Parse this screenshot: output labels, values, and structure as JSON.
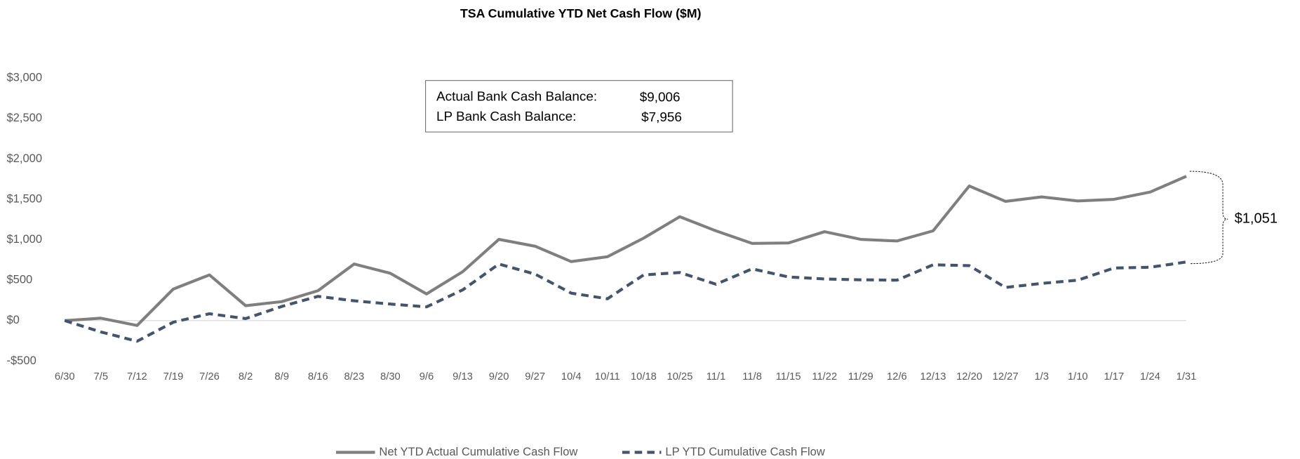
{
  "chart_data": {
    "type": "line",
    "title": "TSA Cumulative YTD Net Cash Flow ($M)",
    "categories": [
      "6/30",
      "7/5",
      "7/12",
      "7/19",
      "7/26",
      "8/2",
      "8/9",
      "8/16",
      "8/23",
      "8/30",
      "9/6",
      "9/13",
      "9/20",
      "9/27",
      "10/4",
      "10/11",
      "10/18",
      "10/25",
      "11/1",
      "11/8",
      "11/15",
      "11/22",
      "11/29",
      "12/6",
      "12/13",
      "12/20",
      "12/27",
      "1/3",
      "1/10",
      "1/17",
      "1/24",
      "1/31"
    ],
    "series": [
      {
        "name": "Net YTD Actual Cumulative Cash Flow",
        "color": "#7f7f7f",
        "line_style": "solid",
        "values": [
          0,
          30,
          -60,
          390,
          565,
          185,
          235,
          370,
          700,
          585,
          330,
          605,
          1005,
          920,
          730,
          790,
          1020,
          1285,
          1110,
          955,
          960,
          1100,
          1005,
          985,
          1110,
          1665,
          1475,
          1530,
          1480,
          1500,
          1590,
          1785
        ]
      },
      {
        "name": "LP YTD Cumulative Cash Flow",
        "color": "#44546a",
        "line_style": "dashed",
        "values": [
          0,
          -140,
          -255,
          -20,
          85,
          25,
          175,
          300,
          245,
          205,
          170,
          380,
          700,
          575,
          340,
          270,
          565,
          595,
          450,
          640,
          540,
          515,
          505,
          500,
          690,
          680,
          410,
          460,
          500,
          650,
          660,
          725
        ]
      }
    ],
    "ylim": [
      -500,
      3000
    ],
    "yticks": [
      {
        "value": -500,
        "label": "-$500"
      },
      {
        "value": 0,
        "label": "$0"
      },
      {
        "value": 500,
        "label": "$500"
      },
      {
        "value": 1000,
        "label": "$1,000"
      },
      {
        "value": 1500,
        "label": "$1,500"
      },
      {
        "value": 2000,
        "label": "$2,000"
      },
      {
        "value": 2500,
        "label": "$2,500"
      },
      {
        "value": 3000,
        "label": "$3,000"
      }
    ],
    "grid": false,
    "legend": "bottom",
    "annotations": {
      "balances": [
        {
          "label": "Actual Bank Cash Balance:",
          "value": "$9,006"
        },
        {
          "label": "LP Bank Cash Balance:",
          "value": "$7,956"
        }
      ],
      "gap": "$1,051"
    }
  }
}
